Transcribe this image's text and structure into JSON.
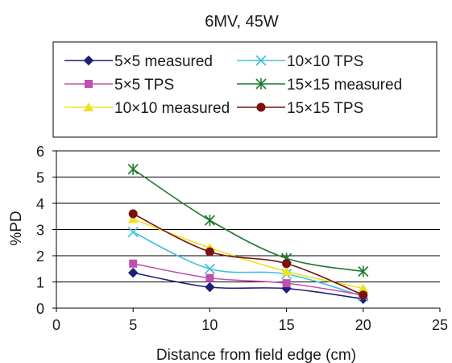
{
  "chart_data": {
    "type": "line",
    "title": "6MV, 45W",
    "xlabel": "Distance from field edge (cm)",
    "ylabel": "%PD",
    "xlim": [
      0,
      25
    ],
    "ylim": [
      0,
      6
    ],
    "xticks": [
      0,
      5,
      10,
      15,
      20,
      25
    ],
    "yticks": [
      0,
      1,
      2,
      3,
      4,
      5,
      6
    ],
    "grid": "horizontal",
    "legend_position": "top",
    "series": [
      {
        "name": "5×5 measured",
        "x": [
          5,
          10,
          15,
          20
        ],
        "y": [
          1.35,
          0.8,
          0.75,
          0.35
        ],
        "color": "#1f1f7a",
        "marker": "diamond"
      },
      {
        "name": "10×10 TPS",
        "x": [
          5,
          10,
          15,
          20
        ],
        "y": [
          2.9,
          1.5,
          1.3,
          0.45
        ],
        "color": "#40c0e0",
        "marker": "x"
      },
      {
        "name": "5×5 TPS",
        "x": [
          5,
          10,
          15,
          20
        ],
        "y": [
          1.7,
          1.15,
          0.95,
          0.5
        ],
        "color": "#c050b0",
        "marker": "square"
      },
      {
        "name": "15×15 measured",
        "x": [
          5,
          10,
          15,
          20
        ],
        "y": [
          5.3,
          3.35,
          1.9,
          1.4
        ],
        "color": "#1c7a2e",
        "marker": "star"
      },
      {
        "name": "10×10 measured",
        "x": [
          5,
          10,
          15,
          20
        ],
        "y": [
          3.4,
          2.3,
          1.4,
          0.75
        ],
        "color": "#f0e020",
        "marker": "triangle"
      },
      {
        "name": "15×15 TPS",
        "x": [
          5,
          10,
          15,
          20
        ],
        "y": [
          3.6,
          2.15,
          1.7,
          0.5
        ],
        "color": "#7a1010",
        "marker": "circle"
      }
    ]
  }
}
